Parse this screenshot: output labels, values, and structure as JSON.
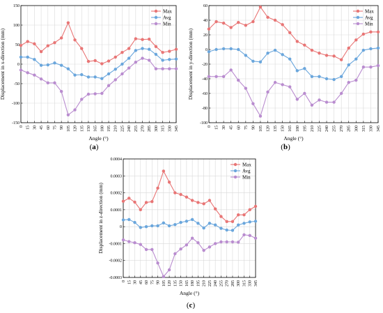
{
  "colors": {
    "Max": "#e87575",
    "Avg": "#6aa6dc",
    "Min": "#b98ccf"
  },
  "panels": [
    {
      "label_open": "(",
      "label_letter": "a",
      "label_close": ")"
    },
    {
      "label_open": "(",
      "label_letter": "b",
      "label_close": ")"
    },
    {
      "label_open": "(",
      "label_letter": "c",
      "label_close": ")"
    }
  ],
  "chart_data": [
    {
      "type": "line",
      "xlabel": "Angle (°)",
      "ylabel": "Displacement in x-direction (mm)",
      "x": [
        0,
        15,
        30,
        45,
        60,
        75,
        90,
        105,
        120,
        135,
        150,
        165,
        180,
        195,
        210,
        225,
        240,
        255,
        270,
        285,
        300,
        315,
        330,
        345
      ],
      "ylim": [
        -150,
        150
      ],
      "yticks": [
        -150,
        -100,
        -50,
        0,
        50,
        100,
        150
      ],
      "ytick_labels": [
        "-150",
        "-100",
        "-50",
        "0",
        "50",
        "100",
        "150"
      ],
      "grid": true,
      "legend": "top-right",
      "series": [
        {
          "name": "Max",
          "values": [
            48,
            58,
            52,
            32,
            47,
            55,
            67,
            106,
            62,
            40,
            7,
            9,
            1,
            8,
            18,
            30,
            40,
            65,
            63,
            64,
            45,
            30,
            33,
            38
          ]
        },
        {
          "name": "Avg",
          "values": [
            18,
            18,
            12,
            -3,
            -2,
            3,
            -3,
            -12,
            -28,
            -27,
            -33,
            -33,
            -37,
            -25,
            -13,
            0,
            15,
            35,
            40,
            38,
            25,
            10,
            12,
            13
          ]
        },
        {
          "name": "Min",
          "values": [
            -15,
            -22,
            -28,
            -38,
            -48,
            -48,
            -70,
            -130,
            -117,
            -90,
            -77,
            -76,
            -75,
            -55,
            -40,
            -25,
            -10,
            5,
            15,
            10,
            -12,
            -12,
            -12,
            -12
          ]
        }
      ]
    },
    {
      "type": "line",
      "xlabel": "Angle (°)",
      "ylabel": "Displacement in y-direction (mm)",
      "x": [
        0,
        15,
        30,
        45,
        60,
        75,
        90,
        105,
        120,
        135,
        150,
        165,
        180,
        195,
        210,
        225,
        240,
        255,
        270,
        285,
        300,
        315,
        330,
        345
      ],
      "ylim": [
        -100,
        60
      ],
      "yticks": [
        -100,
        -80,
        -60,
        -40,
        -20,
        0,
        20,
        40,
        60
      ],
      "ytick_labels": [
        "-100",
        "-80",
        "-60",
        "-40",
        "-20",
        "0",
        "20",
        "40",
        "60"
      ],
      "grid": true,
      "legend": "top-right",
      "series": [
        {
          "name": "Max",
          "values": [
            28,
            38,
            36,
            30,
            37,
            33,
            38,
            58,
            44,
            40,
            34,
            23,
            11,
            6,
            -1,
            -5,
            -8,
            -9,
            -14,
            2,
            13,
            21,
            24,
            24
          ]
        },
        {
          "name": "Avg",
          "values": [
            -3,
            0,
            1,
            1,
            0,
            -8,
            -16,
            -17,
            -5,
            -1,
            -7,
            -13,
            -29,
            -26,
            -37,
            -37,
            -40,
            -41,
            -37,
            -21,
            -13,
            -1,
            1,
            2
          ]
        },
        {
          "name": "Min",
          "values": [
            -37,
            -37,
            -37,
            -28,
            -42,
            -53,
            -74,
            -91,
            -58,
            -45,
            -48,
            -51,
            -68,
            -60,
            -76,
            -69,
            -72,
            -72,
            -60,
            -45,
            -42,
            -24,
            -24,
            -22
          ]
        }
      ]
    },
    {
      "type": "line",
      "xlabel": "Angle (°)",
      "ylabel": "Displacement in z-direction (mm)",
      "x": [
        0,
        15,
        30,
        45,
        60,
        75,
        90,
        105,
        120,
        135,
        150,
        165,
        180,
        195,
        210,
        225,
        240,
        255,
        270,
        285,
        300,
        315,
        330,
        345
      ],
      "ylim": [
        -0.0003,
        0.0004
      ],
      "yticks": [
        -0.0003,
        -0.0002,
        -0.0001,
        0,
        0.0001,
        0.0002,
        0.0003,
        0.0004
      ],
      "ytick_labels": [
        "-0.0003",
        "-0.0002",
        "-0.0001",
        "0",
        "0.0001",
        "0.0002",
        "0.0003",
        "0.0004"
      ],
      "grid": true,
      "legend": "top-right",
      "series": [
        {
          "name": "Max",
          "values": [
            0.00015,
            0.000168,
            0.000145,
            0.0001,
            0.000143,
            0.000148,
            0.000228,
            0.000328,
            0.000263,
            0.0002,
            0.00019,
            0.000175,
            0.000155,
            0.000143,
            0.000135,
            0.000155,
            0.000105,
            6e-05,
            3e-05,
            3e-05,
            7e-05,
            7e-05,
            0.0001,
            0.00012
          ]
        },
        {
          "name": "Avg",
          "values": [
            4e-05,
            4.2e-05,
            2.5e-05,
            -5e-06,
            0,
            5e-06,
            5e-06,
            2.2e-05,
            5e-06,
            1.2e-05,
            2.5e-05,
            3.2e-05,
            4.2e-05,
            2e-05,
            -8e-06,
            2e-05,
            1e-05,
            -1e-05,
            -2e-05,
            -2.2e-05,
            1e-05,
            2e-05,
            2.8e-05,
            3.2e-05
          ]
        },
        {
          "name": "Min",
          "values": [
            -7.8e-05,
            -8.8e-05,
            -9.5e-05,
            -0.000105,
            -0.000135,
            -0.000135,
            -0.000215,
            -0.000295,
            -0.000255,
            -0.00016,
            -0.000132,
            -0.000108,
            -6.8e-05,
            -9.5e-05,
            -0.00014,
            -0.00012,
            -0.0001,
            -9e-05,
            -9e-05,
            -9e-05,
            -9.2e-05,
            -4.8e-05,
            -5.2e-05,
            -6.8e-05
          ]
        }
      ]
    }
  ]
}
